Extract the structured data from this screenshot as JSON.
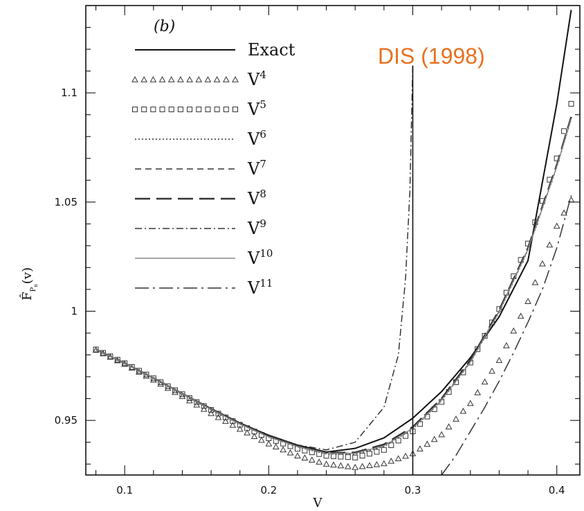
{
  "chart_data": {
    "type": "line",
    "title": "",
    "panel_label": "(b)",
    "xlabel": "V",
    "ylabel": "F̂",
    "ylabel_sub": "P",
    "ylabel_subsub": "n",
    "ylabel_arg": "(v)",
    "xlim": [
      0.073,
      0.416
    ],
    "ylim": [
      0.925,
      1.14
    ],
    "x_ticks": [
      0.1,
      0.2,
      0.3,
      0.4
    ],
    "y_ticks": [
      0.95,
      1.0,
      1.05,
      1.1
    ],
    "x_tick_labels": [
      "0.1",
      "0.2",
      "0.3",
      "0.4"
    ],
    "y_tick_labels": [
      "0.95",
      "1",
      "1.05",
      "1.1"
    ],
    "grid": false,
    "legend_position": "top-left",
    "annotation": {
      "text": "DIS (1998)",
      "color": "#e8711f"
    },
    "vertical_line": {
      "x": 0.3,
      "y_range": [
        0.925,
        1.1125
      ]
    },
    "series": [
      {
        "name": "Exact",
        "sup": "",
        "style": "solid",
        "color": "#111111",
        "x": [
          0.08,
          0.1,
          0.12,
          0.14,
          0.16,
          0.18,
          0.2,
          0.22,
          0.24,
          0.26,
          0.28,
          0.3,
          0.32,
          0.34,
          0.36,
          0.38,
          0.4,
          0.41
        ],
        "y": [
          0.9825,
          0.9762,
          0.9694,
          0.9623,
          0.9554,
          0.9488,
          0.9432,
          0.9387,
          0.9355,
          0.9372,
          0.942,
          0.951,
          0.9632,
          0.9787,
          0.9975,
          1.0232,
          1.095,
          1.138
        ]
      },
      {
        "name": "V",
        "sup": "4",
        "style": "triangles",
        "color": "#333333",
        "x": [
          0.08,
          0.1,
          0.12,
          0.14,
          0.16,
          0.18,
          0.2,
          0.22,
          0.24,
          0.26,
          0.28,
          0.3,
          0.32,
          0.34,
          0.36,
          0.38,
          0.4,
          0.41
        ],
        "y": [
          0.9822,
          0.9758,
          0.9685,
          0.961,
          0.9532,
          0.946,
          0.9393,
          0.9338,
          0.93,
          0.9285,
          0.9302,
          0.9348,
          0.9435,
          0.9578,
          0.9775,
          1.0045,
          1.039,
          1.051
        ]
      },
      {
        "name": "V",
        "sup": "5",
        "style": "squares",
        "color": "#333333",
        "x": [
          0.08,
          0.1,
          0.12,
          0.14,
          0.16,
          0.18,
          0.2,
          0.22,
          0.24,
          0.26,
          0.28,
          0.3,
          0.32,
          0.34,
          0.36,
          0.38,
          0.4,
          0.41
        ],
        "y": [
          0.9825,
          0.9762,
          0.9693,
          0.962,
          0.9548,
          0.948,
          0.9418,
          0.937,
          0.9338,
          0.933,
          0.9365,
          0.945,
          0.9585,
          0.9765,
          1.001,
          1.031,
          1.07,
          1.095
        ]
      },
      {
        "name": "V",
        "sup": "6",
        "style": "dotted",
        "color": "#333333",
        "x": [
          0.08,
          0.1,
          0.12,
          0.14,
          0.16,
          0.18,
          0.2,
          0.22,
          0.24,
          0.26,
          0.28,
          0.3,
          0.32,
          0.34,
          0.36,
          0.38,
          0.4,
          0.41
        ],
        "y": [
          0.9825,
          0.9762,
          0.9693,
          0.9621,
          0.955,
          0.9483,
          0.9424,
          0.9378,
          0.9346,
          0.9345,
          0.938,
          0.946,
          0.959,
          0.9765,
          0.9995,
          1.028,
          1.066,
          1.088
        ]
      },
      {
        "name": "V",
        "sup": "7",
        "style": "dashed",
        "color": "#333333",
        "x": [
          0.08,
          0.1,
          0.12,
          0.14,
          0.16,
          0.18,
          0.2,
          0.22,
          0.24,
          0.26,
          0.28,
          0.3,
          0.32,
          0.34,
          0.36,
          0.38,
          0.4,
          0.41
        ],
        "y": [
          0.9825,
          0.9762,
          0.9694,
          0.9622,
          0.9551,
          0.9484,
          0.9426,
          0.9381,
          0.935,
          0.935,
          0.9386,
          0.9466,
          0.9596,
          0.977,
          1.0,
          1.0285,
          1.0665,
          1.0885
        ]
      },
      {
        "name": "V",
        "sup": "8",
        "style": "longdash",
        "color": "#333333",
        "x": [
          0.08,
          0.1,
          0.12,
          0.14,
          0.16,
          0.18,
          0.2,
          0.22,
          0.24,
          0.26,
          0.28,
          0.3,
          0.32,
          0.34,
          0.36,
          0.38,
          0.4,
          0.41
        ],
        "y": [
          0.9825,
          0.9762,
          0.9694,
          0.9622,
          0.9551,
          0.9485,
          0.9427,
          0.9382,
          0.9352,
          0.9353,
          0.939,
          0.947,
          0.96,
          0.9775,
          1.0005,
          1.029,
          1.067,
          1.089
        ]
      },
      {
        "name": "V",
        "sup": "9",
        "style": "dashdot",
        "color": "#333333",
        "x": [
          0.08,
          0.1,
          0.12,
          0.14,
          0.16,
          0.18,
          0.2,
          0.22,
          0.24,
          0.26,
          0.28,
          0.29,
          0.295,
          0.298,
          0.3
        ],
        "y": [
          0.9825,
          0.9762,
          0.9694,
          0.9622,
          0.9552,
          0.9487,
          0.943,
          0.9388,
          0.9365,
          0.94,
          0.956,
          0.98,
          1.015,
          1.055,
          1.1125
        ]
      },
      {
        "name": "V",
        "sup": "10",
        "style": "solid-gray",
        "color": "#888888",
        "x": [
          0.08,
          0.1,
          0.12,
          0.14,
          0.16,
          0.18,
          0.2,
          0.22,
          0.24,
          0.26,
          0.28,
          0.3,
          0.32,
          0.34,
          0.36,
          0.38,
          0.4,
          0.41
        ],
        "y": [
          0.9825,
          0.9762,
          0.9694,
          0.9622,
          0.9551,
          0.9484,
          0.9425,
          0.938,
          0.9349,
          0.9349,
          0.9384,
          0.9464,
          0.9593,
          0.9768,
          0.9998,
          1.0283,
          1.0663,
          1.0883
        ]
      },
      {
        "name": "V",
        "sup": "11",
        "style": "dashdot-long",
        "color": "#333333",
        "x": [
          0.32,
          0.33,
          0.34,
          0.35,
          0.36,
          0.37,
          0.38,
          0.39,
          0.4,
          0.41
        ],
        "y": [
          0.925,
          0.934,
          0.945,
          0.956,
          0.968,
          0.981,
          0.995,
          1.01,
          1.029,
          1.053
        ]
      }
    ]
  }
}
